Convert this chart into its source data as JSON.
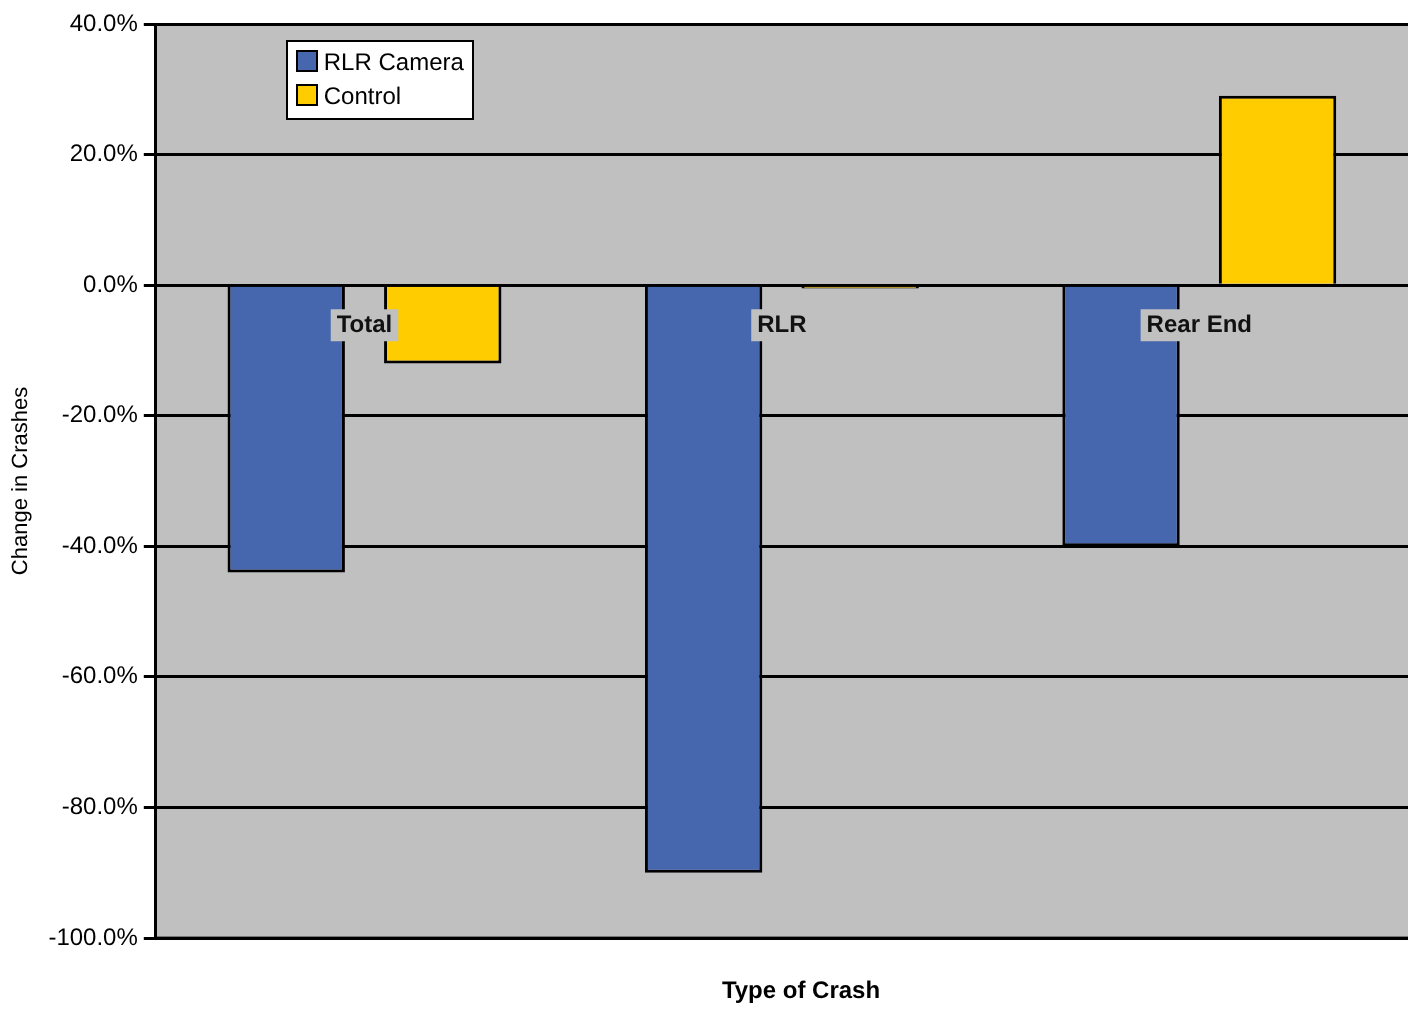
{
  "chart_data": {
    "type": "bar",
    "xlabel": "Type of Crash",
    "ylabel": "Change in Crashes",
    "categories": [
      "Total",
      "RLR",
      "Rear End"
    ],
    "series": [
      {
        "name": "RLR Camera",
        "color": "#4666ae",
        "values": [
          -44,
          -90,
          -40
        ]
      },
      {
        "name": "Control",
        "color": "#ffcc00",
        "values": [
          -12,
          -0.5,
          29
        ]
      }
    ],
    "ylim": [
      -100,
      40
    ],
    "yticks": [
      {
        "value": -100,
        "label": "-100.0%"
      },
      {
        "value": -80,
        "label": "-80.0%"
      },
      {
        "value": -60,
        "label": "-60.0%"
      },
      {
        "value": -40,
        "label": "-40.0%"
      },
      {
        "value": -20,
        "label": "-20.0%"
      },
      {
        "value": 0,
        "label": "0.0%"
      },
      {
        "value": 20,
        "label": "20.0%"
      },
      {
        "value": 40,
        "label": "40.0%"
      }
    ],
    "grid": "y",
    "legend": "top left"
  }
}
